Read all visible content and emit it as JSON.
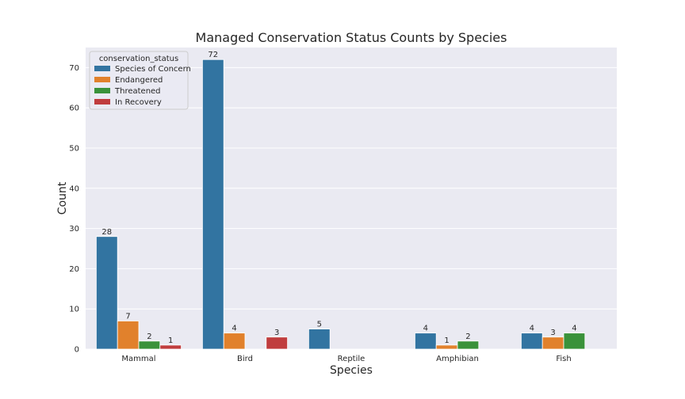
{
  "chart_data": {
    "type": "bar",
    "title": "Managed Conservation Status Counts by Species",
    "xlabel": "Species",
    "ylabel": "Count",
    "categories": [
      "Mammal",
      "Bird",
      "Reptile",
      "Amphibian",
      "Fish"
    ],
    "series": [
      {
        "name": "Species of Concern",
        "color": "#3274a1",
        "values": [
          28,
          72,
          5,
          4,
          4
        ]
      },
      {
        "name": "Endangered",
        "color": "#e1812c",
        "values": [
          7,
          4,
          null,
          1,
          3
        ]
      },
      {
        "name": "Threatened",
        "color": "#3a923a",
        "values": [
          2,
          null,
          null,
          2,
          4
        ]
      },
      {
        "name": "In Recovery",
        "color": "#c03d3e",
        "values": [
          1,
          3,
          null,
          null,
          null
        ]
      }
    ],
    "ylim": [
      0,
      75
    ],
    "yticks": [
      0,
      10,
      20,
      30,
      40,
      50,
      60,
      70
    ],
    "grid": true,
    "legend_title": "conservation_status",
    "legend_position": "top-left",
    "colors": {
      "plot_background": "#eaeaf2",
      "grid": "#ffffff",
      "text": "#262626"
    }
  }
}
